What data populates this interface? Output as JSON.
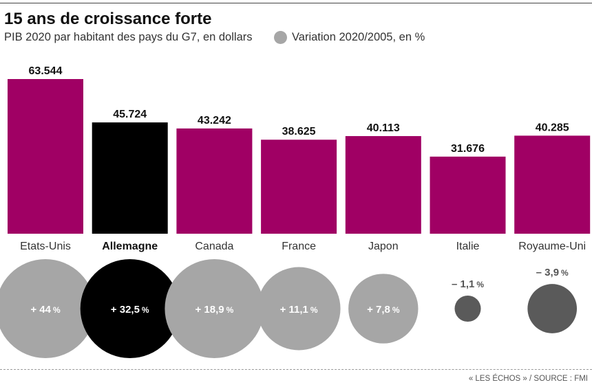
{
  "title": "15 ans de croissance forte",
  "subtitle": "PIB 2020 par habitant des pays du G7, en dollars",
  "legend_label": "Variation 2020/2005, en %",
  "source": "« LES ÉCHOS » / SOURCE : FMI",
  "colors": {
    "bar": "#a00064",
    "highlight": "#000000",
    "bubble_positive": "#a6a6a6",
    "bubble_negative": "#5a5a5a",
    "legend_dot": "#a6a6a6"
  },
  "chart_data": {
    "type": "bar",
    "title": "15 ans de croissance forte",
    "subtitle": "PIB 2020 par habitant des pays du G7, en dollars",
    "categories": [
      "Etats-Unis",
      "Allemagne",
      "Canada",
      "France",
      "Japon",
      "Italie",
      "Royaume-Uni"
    ],
    "highlight": "Allemagne",
    "series": [
      {
        "name": "PIB 2020 par habitant des pays du G7, en dollars",
        "values": [
          63544,
          45724,
          43242,
          38625,
          40113,
          31676,
          40285
        ],
        "labels": [
          "63.544",
          "45.724",
          "43.242",
          "38.625",
          "40.113",
          "31.676",
          "40.285"
        ]
      },
      {
        "name": "Variation 2020/2005, en %",
        "values": [
          44,
          32.5,
          18.9,
          11.1,
          7.8,
          -1.1,
          -3.9
        ],
        "labels": [
          "+ 44",
          "+ 32,5",
          "+ 18,9",
          "+ 11,1",
          "+ 7,8",
          "– 1,1",
          "– 3,9"
        ],
        "unit": "%"
      }
    ],
    "xlabel": "",
    "ylabel": "",
    "ylim": [
      0,
      63544
    ],
    "grid": false
  }
}
